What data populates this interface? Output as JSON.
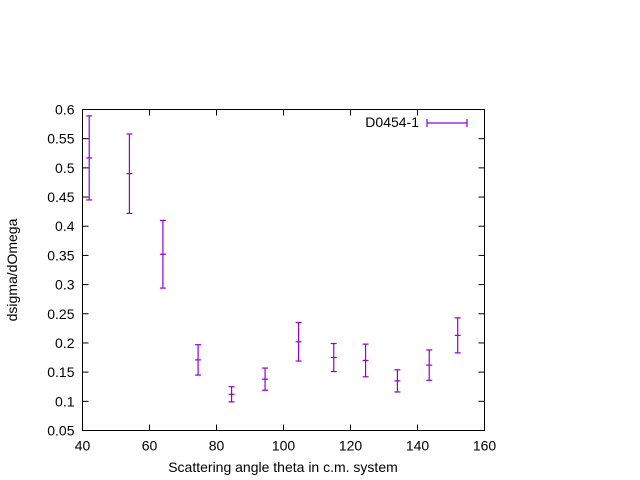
{
  "chart_data": {
    "type": "scatter",
    "title": "",
    "xlabel": "Scattering angle theta in c.m. system",
    "ylabel": "dsigma/dOmega",
    "xlim": [
      40,
      160
    ],
    "ylim": [
      0.05,
      0.6
    ],
    "x_ticks": [
      "40",
      "60",
      "80",
      "100",
      "120",
      "140",
      "160"
    ],
    "y_ticks": [
      "0.05",
      "0.1",
      "0.15",
      "0.2",
      "0.25",
      "0.3",
      "0.35",
      "0.4",
      "0.45",
      "0.5",
      "0.55",
      "0.6"
    ],
    "grid": false,
    "legend_position": "top-right",
    "series": [
      {
        "name": "D0454-1",
        "color": "#9400d3",
        "style": "points-with-y-errorbars",
        "points": [
          {
            "x": 42.0,
            "y": 0.517,
            "yerr": 0.072
          },
          {
            "x": 54.0,
            "y": 0.49,
            "yerr": 0.068
          },
          {
            "x": 64.0,
            "y": 0.352,
            "yerr": 0.058
          },
          {
            "x": 74.5,
            "y": 0.171,
            "yerr": 0.026
          },
          {
            "x": 84.5,
            "y": 0.112,
            "yerr": 0.013
          },
          {
            "x": 94.5,
            "y": 0.138,
            "yerr": 0.019
          },
          {
            "x": 104.5,
            "y": 0.202,
            "yerr": 0.033
          },
          {
            "x": 115.0,
            "y": 0.175,
            "yerr": 0.024
          },
          {
            "x": 124.5,
            "y": 0.17,
            "yerr": 0.028
          },
          {
            "x": 134.0,
            "y": 0.135,
            "yerr": 0.019
          },
          {
            "x": 143.5,
            "y": 0.162,
            "yerr": 0.026
          },
          {
            "x": 152.0,
            "y": 0.213,
            "yerr": 0.03
          }
        ]
      }
    ]
  }
}
